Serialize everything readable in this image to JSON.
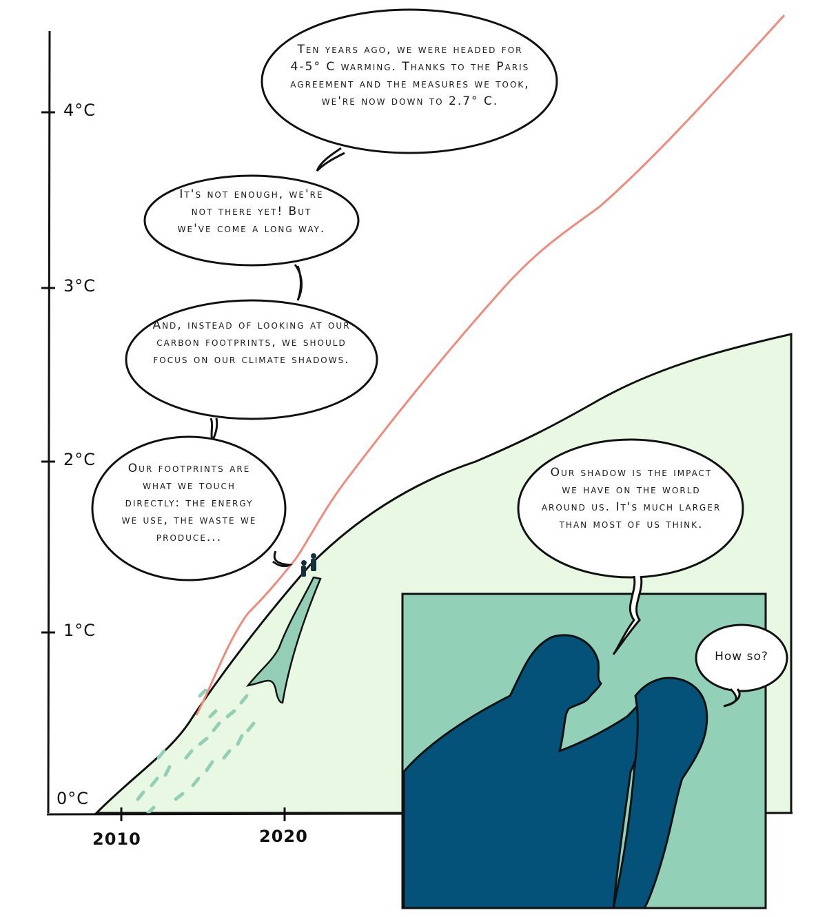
{
  "colors": {
    "warming_line": "#f08a7c",
    "shadow_area": "#e8f8e2",
    "footprint": "#93cfb6",
    "panel_bg": "#93d0b8",
    "silhouette": "#04527a",
    "ink": "#111111"
  },
  "axis": {
    "y_ticks": [
      "4°C",
      "3°C",
      "2°C",
      "1°C",
      "0°C"
    ],
    "x_ticks": [
      "2010",
      "2020"
    ]
  },
  "bubbles": {
    "b1": "Ten years ago, we were headed for 4-5° C warming. Thanks to the Paris agreement and the measures we took, we're now down to 2.7° C.",
    "b2": "It's not enough, we're not there yet! But we've come a long way.",
    "b3": "And, instead of looking at our carbon footprints, we should focus on our climate shadows.",
    "b4": "Our footprints are what we touch directly: the energy we use, the waste we produce...",
    "b5": "Our shadow is the impact we have on the world around us. It's much larger than most of us think.",
    "b6": "How so?"
  }
}
